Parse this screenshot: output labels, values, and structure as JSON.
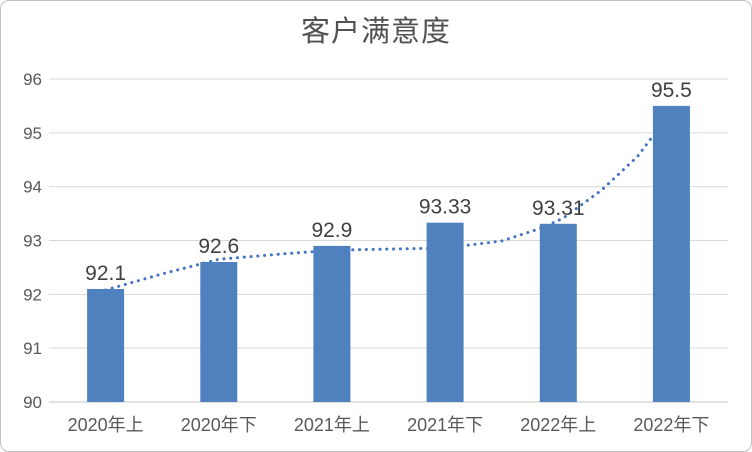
{
  "frame": {
    "background": "#ffffff",
    "border_color": "#c3c3c3"
  },
  "chart_data": {
    "type": "bar",
    "title": "客户满意度",
    "categories": [
      "2020年上",
      "2020年下",
      "2021年上",
      "2021年下",
      "2022年上",
      "2022年下"
    ],
    "values": [
      92.1,
      92.6,
      92.9,
      93.33,
      93.31,
      95.5
    ],
    "data_labels": [
      "92.1",
      "92.6",
      "92.9",
      "93.33",
      "93.31",
      "95.5"
    ],
    "xlabel": "",
    "ylabel": "",
    "ylim": [
      90,
      96
    ],
    "yticks": [
      90,
      91,
      92,
      93,
      94,
      95,
      96
    ],
    "grid": true,
    "legend": "none",
    "bar_color": "#4e81bd",
    "trendline": {
      "style": "dotted",
      "color": "#4472c4",
      "points_slot_value": [
        [
          0.5,
          92.08
        ],
        [
          1.0,
          92.38
        ],
        [
          1.5,
          92.65
        ],
        [
          2.0,
          92.74
        ],
        [
          2.5,
          92.82
        ],
        [
          3.0,
          92.84
        ],
        [
          3.5,
          92.86
        ],
        [
          4.0,
          92.99
        ],
        [
          4.35,
          93.23
        ],
        [
          4.54,
          93.41
        ],
        [
          4.88,
          93.93
        ],
        [
          5.2,
          94.56
        ],
        [
          5.34,
          94.95
        ]
      ]
    },
    "colors": {
      "grid": "#d9d9d9",
      "axis_line": "#c6c6c6",
      "tick_label": "#595959",
      "data_label": "#404040",
      "title": "#525252"
    }
  }
}
